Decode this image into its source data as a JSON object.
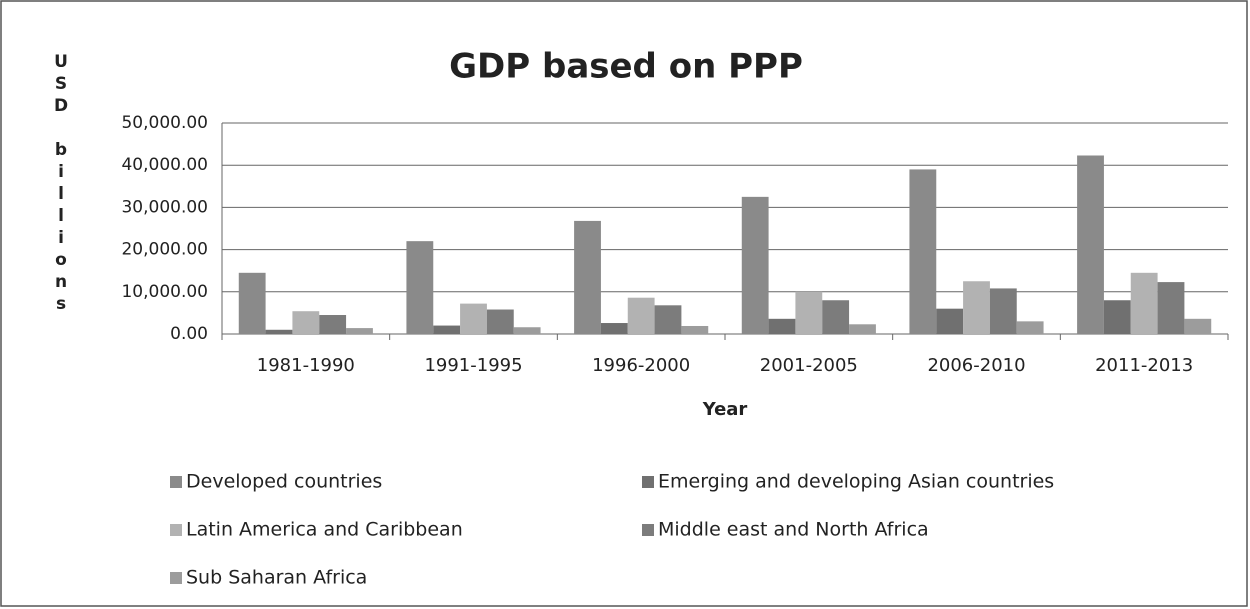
{
  "chart_data": {
    "type": "bar",
    "title": "GDP based on PPP",
    "x_label": "Year",
    "y_label": "USD billions",
    "categories": [
      "1981-1990",
      "1991-1995",
      "1996-2000",
      "2001-2005",
      "2006-2010",
      "2011-2013"
    ],
    "series": [
      {
        "name": "Developed countries",
        "color": "#8a8a8a",
        "values": [
          14500,
          22000,
          26800,
          32500,
          39000,
          42300
        ]
      },
      {
        "name": "Emerging and developing Asian countries",
        "color": "#707070",
        "values": [
          1000,
          2000,
          2600,
          3600,
          6000,
          8000
        ]
      },
      {
        "name": "Latin America and Caribbean",
        "color": "#b2b2b2",
        "values": [
          5400,
          7200,
          8600,
          10000,
          12500,
          14500
        ]
      },
      {
        "name": "Middle east and North Africa",
        "color": "#7c7c7c",
        "values": [
          4500,
          5800,
          6800,
          8000,
          10800,
          12300
        ]
      },
      {
        "name": "Sub Saharan Africa",
        "color": "#9c9c9c",
        "values": [
          1400,
          1600,
          1900,
          2300,
          3000,
          3600
        ]
      }
    ],
    "ylim": [
      0,
      50000
    ],
    "yticks": [
      {
        "value": 0,
        "label": "0.00"
      },
      {
        "value": 10000,
        "label": "10,000.00"
      },
      {
        "value": 20000,
        "label": "20,000.00"
      },
      {
        "value": 30000,
        "label": "30,000.00"
      },
      {
        "value": 40000,
        "label": "40,000.00"
      },
      {
        "value": 50000,
        "label": "50,000.00"
      }
    ],
    "grid": true
  }
}
